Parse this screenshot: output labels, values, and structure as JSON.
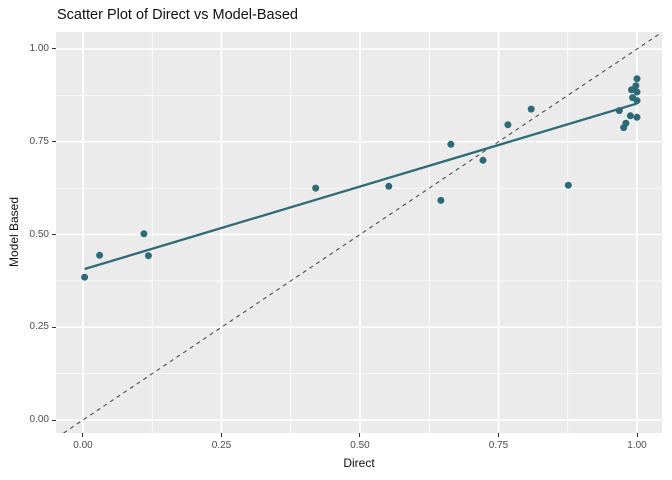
{
  "chart_data": {
    "type": "scatter",
    "title": "Scatter Plot of Direct vs Model-Based",
    "xlabel": "Direct",
    "ylabel": "Model Based",
    "xlim": [
      -0.0487,
      1.0451
    ],
    "ylim": [
      -0.035,
      1.0458
    ],
    "x_ticks": {
      "values": [
        0.0,
        0.25,
        0.5,
        0.75,
        1.0
      ],
      "labels": [
        "0.00",
        "0.25",
        "0.50",
        "0.75",
        "1.00"
      ]
    },
    "y_ticks": {
      "values": [
        0.0,
        0.25,
        0.5,
        0.75,
        1.0
      ],
      "labels": [
        "0.00",
        "0.25",
        "0.50",
        "0.75",
        "1.00"
      ]
    },
    "x_minor_ticks": [
      0.125,
      0.375,
      0.625,
      0.875
    ],
    "y_minor_ticks": [
      0.125,
      0.375,
      0.625,
      0.875
    ],
    "grid": "on",
    "legend": "none",
    "points": [
      [
        0.003,
        0.385
      ],
      [
        0.03,
        0.444
      ],
      [
        0.11,
        0.502
      ],
      [
        0.118,
        0.443
      ],
      [
        0.42,
        0.625
      ],
      [
        0.552,
        0.63
      ],
      [
        0.646,
        0.592
      ],
      [
        0.664,
        0.743
      ],
      [
        0.722,
        0.7
      ],
      [
        0.767,
        0.796
      ],
      [
        0.809,
        0.838
      ],
      [
        0.876,
        0.633
      ],
      [
        0.968,
        0.834
      ],
      [
        1.0,
        0.92
      ],
      [
        0.998,
        0.901
      ],
      [
        0.99,
        0.89
      ],
      [
        1.0,
        0.884
      ],
      [
        0.992,
        0.869
      ],
      [
        1.0,
        0.861
      ],
      [
        0.988,
        0.82
      ],
      [
        1.0,
        0.816
      ],
      [
        0.98,
        0.8
      ],
      [
        0.976,
        0.788
      ]
    ],
    "regression_line": {
      "x1": 0.003,
      "y1": 0.407,
      "x2": 1.0,
      "y2": 0.853,
      "style": "solid"
    },
    "identity_line": {
      "x1": -0.035,
      "y1": -0.035,
      "x2": 1.0451,
      "y2": 1.0451,
      "style": "dashed"
    },
    "colors": {
      "point": "#2d6a78",
      "regression_line": "#2d6a78",
      "identity_line": "#4a4a4a",
      "panel_background": "#ebebeb",
      "grid_major": "#ffffff",
      "grid_minor": "#ffffff",
      "tick_text": "#4d4d4d",
      "title_text": "#111111"
    }
  }
}
